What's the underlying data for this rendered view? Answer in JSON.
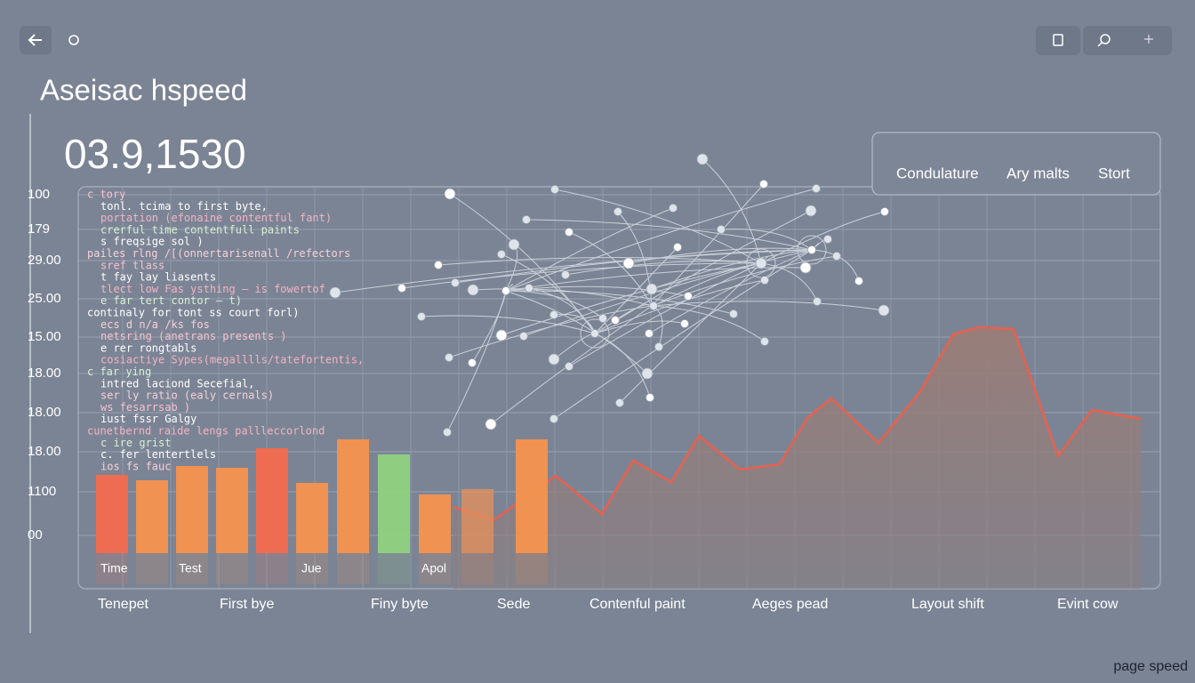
{
  "header": {
    "title": "Aseisac hspeed",
    "metric": "03.9,1530"
  },
  "tabs": [
    "Condulature",
    "Ary malts",
    "Stort"
  ],
  "y_labels": [
    "100",
    "179",
    "29.00",
    "25.00",
    "15.00",
    "18.00",
    "18.00",
    "18.00",
    "1100",
    "00"
  ],
  "code_lines": [
    "c tory",
    "tonl. tcima to first byte,",
    "portation (efonaine contentful fant)",
    "crerful time contentfull paints",
    "s freqsige sol )",
    "pailes rlng /[(onnertarisenall /refectors",
    "sref tlass",
    "t fay lay liasents",
    "tlect low Fas ysthing – is fowertof",
    "e far tert contor – t)",
    "continaly for tont ss court forl)",
    "ecs d n/a /ks fos",
    "netsring (anetrans presents )",
    "e rer rongtabls",
    "cosiactiye Sypes(megalllls/tatefortentis,",
    "c far ying",
    "intred laciond Secefial,",
    "ser ly ratio (ealy cernals)",
    "ws fesarrsab )",
    "iust fssr Galgy",
    "cunetbernd raide lengs pallleccorlond",
    "c ire grist",
    "c. fer lentertlels",
    "ios fs fauc"
  ],
  "bar_labels": [
    "Time",
    "Test",
    "Jue",
    "Apol"
  ],
  "x_labels": [
    "Tenepet",
    "First bye",
    "Finy byte",
    "Sede",
    "Contenful paint",
    "Aeges pead",
    "Layout shift",
    "Evint cow"
  ],
  "footer": "page speed"
}
